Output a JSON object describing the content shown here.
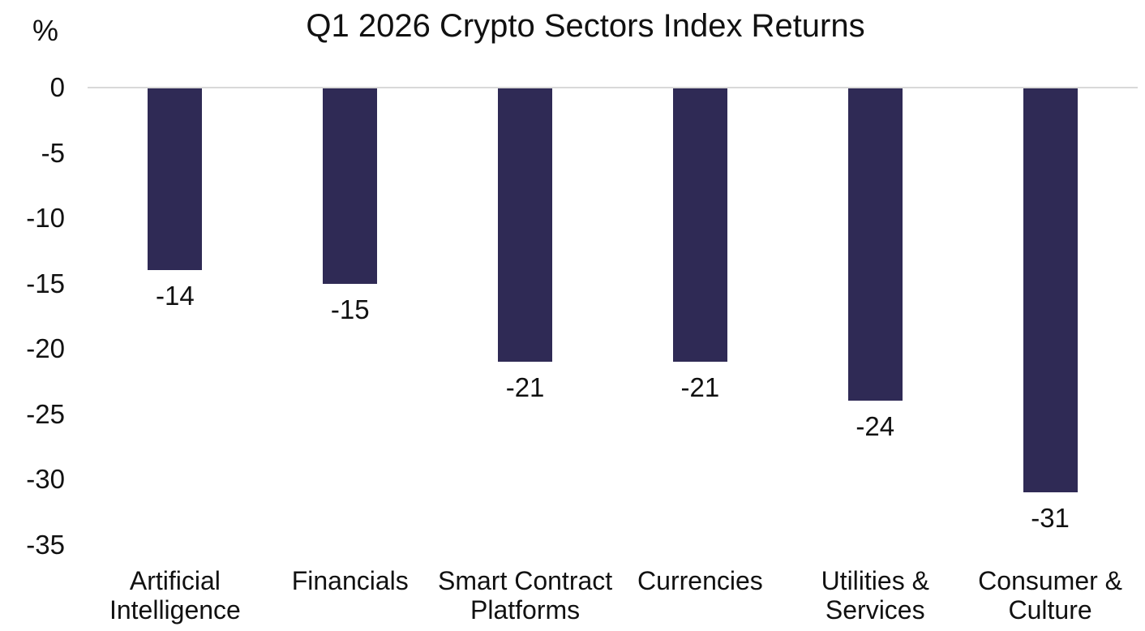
{
  "chart": {
    "title": "Q1 2026 Crypto Sectors Index Returns",
    "unit_label": "%"
  },
  "chart_data": {
    "type": "bar",
    "title": "Q1 2026 Crypto Sectors Index Returns",
    "xlabel": "",
    "ylabel": "%",
    "categories": [
      "Artificial Intelligence",
      "Financials",
      "Smart Contract Platforms",
      "Currencies",
      "Utilities & Services",
      "Consumer & Culture"
    ],
    "category_lines": [
      [
        "Artificial",
        "Intelligence"
      ],
      [
        "Financials"
      ],
      [
        "Smart Contract",
        "Platforms"
      ],
      [
        "Currencies"
      ],
      [
        "Utilities &",
        "Services"
      ],
      [
        "Consumer &",
        "Culture"
      ]
    ],
    "values": [
      -14,
      -15,
      -21,
      -21,
      -24,
      -31
    ],
    "data_labels": [
      "-14",
      "-15",
      "-21",
      "-21",
      "-24",
      "-31"
    ],
    "yticks": [
      0,
      -5,
      -10,
      -15,
      -20,
      -25,
      -30,
      -35
    ],
    "ylim": [
      -35,
      0
    ],
    "grid": false,
    "legend": false,
    "orientation": "vertical",
    "bar_color": "#2F2A55",
    "axis_line_color": "#D9D9D9",
    "text_color": "#111111",
    "background_color": "#FFFFFF"
  }
}
